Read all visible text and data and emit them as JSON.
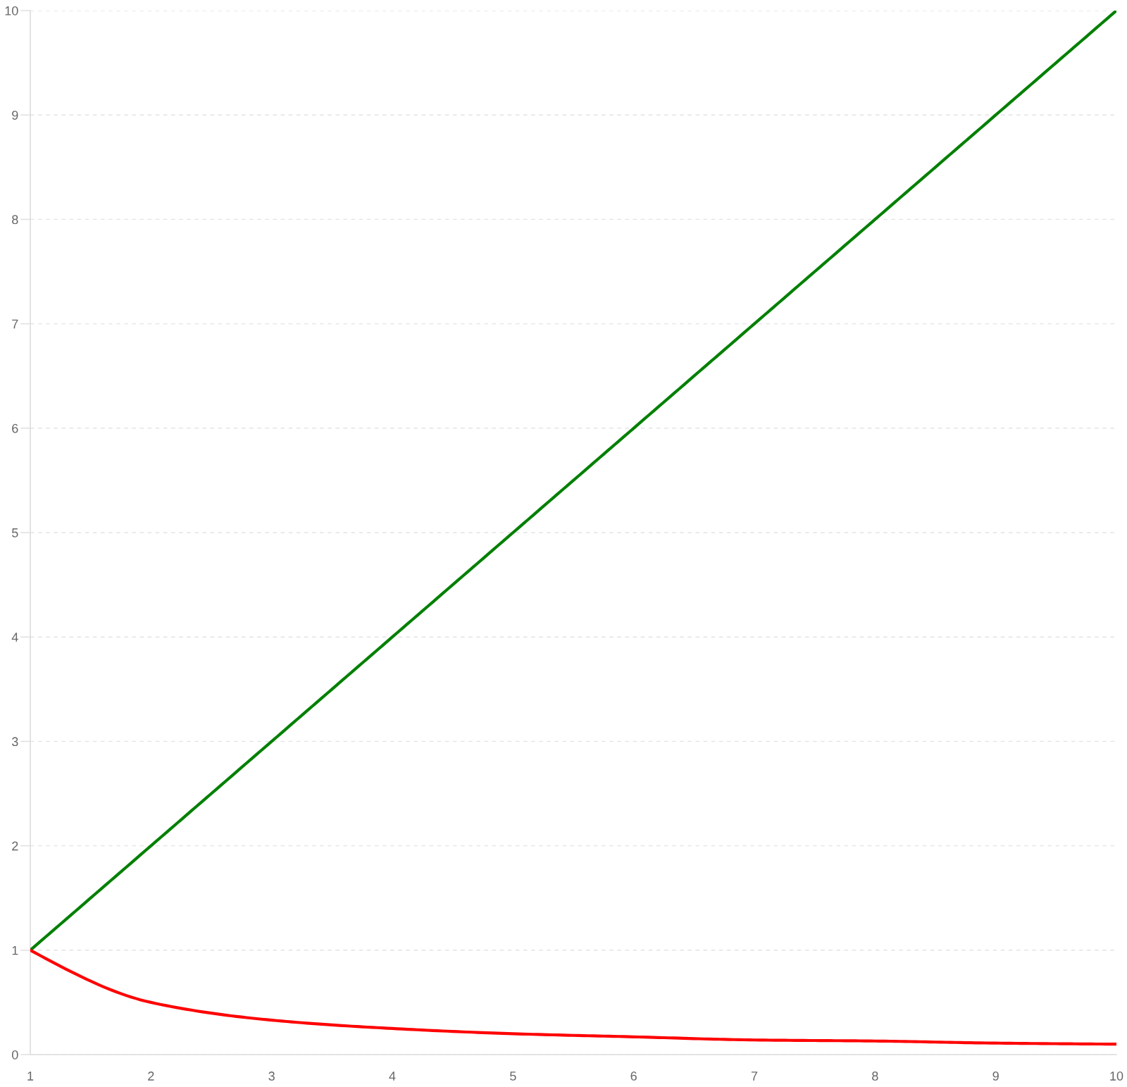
{
  "chart_data": {
    "type": "line",
    "x": [
      1,
      2,
      3,
      4,
      5,
      6,
      7,
      8,
      9,
      10
    ],
    "series": [
      {
        "color": "#008000",
        "values": [
          1,
          2,
          3,
          4,
          5,
          6,
          7,
          8,
          9,
          10
        ]
      },
      {
        "color": "#ff0000",
        "values": [
          1,
          0.5,
          0.33,
          0.25,
          0.2,
          0.17,
          0.14,
          0.13,
          0.11,
          0.1
        ]
      }
    ],
    "xlim": [
      1,
      10
    ],
    "ylim": [
      0,
      10
    ],
    "xticks": [
      1,
      2,
      3,
      4,
      5,
      6,
      7,
      8,
      9,
      10
    ],
    "yticks": [
      0,
      1,
      2,
      3,
      4,
      5,
      6,
      7,
      8,
      9,
      10
    ],
    "grid": "y",
    "line_style": "solid"
  }
}
